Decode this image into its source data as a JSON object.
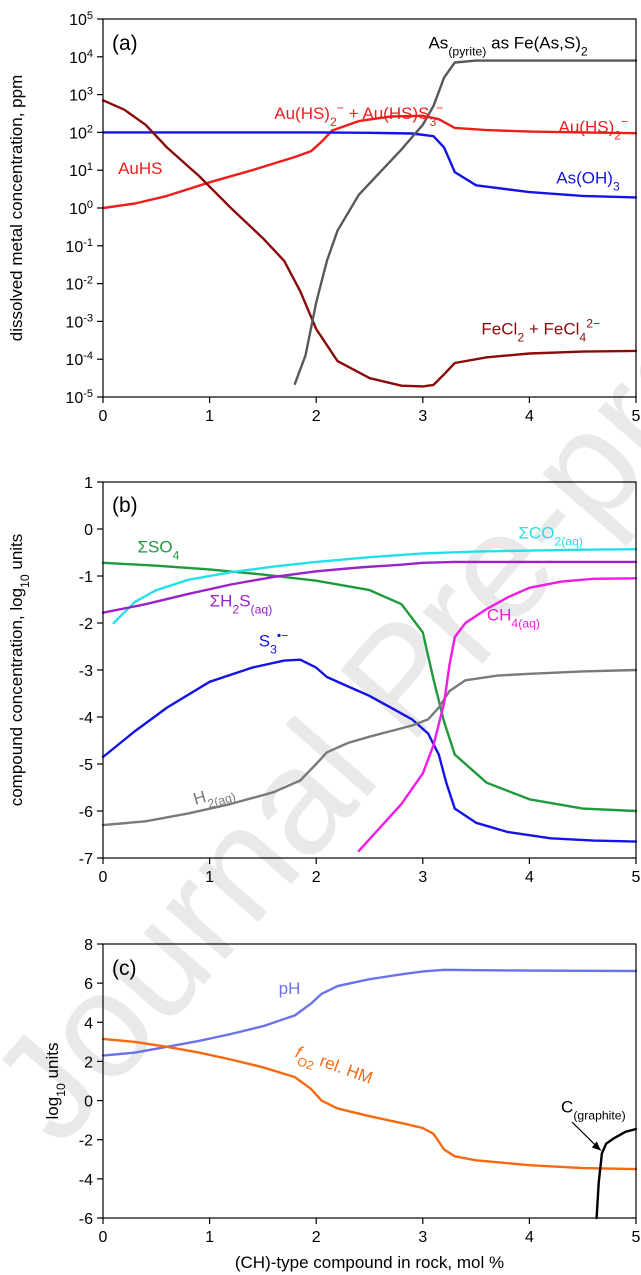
{
  "watermark": "Journal Pre-proof",
  "x_axis_label": "(CH)-type compound in rock, mol %",
  "chart_data": [
    {
      "type": "line",
      "panel_label": "(a)",
      "ylabel": "dissolved metal concentration, ppm",
      "yscale": "log",
      "xlim": [
        0,
        5
      ],
      "ylim": [
        -5,
        5
      ],
      "xticks": [
        "0",
        "1",
        "2",
        "3",
        "4",
        "5"
      ],
      "ytick_base": "10",
      "ytick_exponents": [
        "-5",
        "-4",
        "-3",
        "-2",
        "-1",
        "0",
        "1",
        "2",
        "3",
        "4",
        "5"
      ],
      "series": [
        {
          "id": "au",
          "labels": [
            {
              "text": "AuHS",
              "at": [
                0.35,
                0.9
              ]
            },
            {
              "text": "Au(HS)2− + Au(HS)S3−",
              "at": [
                2.4,
                2.35
              ]
            },
            {
              "text": "Au(HS)2−",
              "at": [
                4.6,
                2.0
              ]
            }
          ],
          "color": "#f01c1c",
          "x": [
            0,
            0.3,
            0.6,
            1.0,
            1.4,
            1.8,
            1.95,
            2.05,
            2.15,
            2.4,
            2.7,
            3.0,
            3.15,
            3.3,
            3.6,
            4.0,
            4.5,
            5.0
          ],
          "y": [
            0.0,
            0.12,
            0.32,
            0.68,
            1.0,
            1.35,
            1.5,
            1.75,
            2.05,
            2.3,
            2.42,
            2.44,
            2.35,
            2.12,
            2.06,
            2.02,
            2.0,
            1.98
          ]
        },
        {
          "id": "as_oh3",
          "labels": [
            {
              "text": "As(OH)3",
              "at": [
                4.55,
                0.65
              ]
            }
          ],
          "color": "#1414e6",
          "x": [
            0,
            0.5,
            1.0,
            1.5,
            2.0,
            2.5,
            2.9,
            3.1,
            3.2,
            3.3,
            3.5,
            4.0,
            4.5,
            5.0
          ],
          "y": [
            2.0,
            2.0,
            2.0,
            2.0,
            2.0,
            1.99,
            1.97,
            1.9,
            1.6,
            0.95,
            0.6,
            0.42,
            0.32,
            0.28
          ]
        },
        {
          "id": "fecl",
          "labels": [
            {
              "text": "FeCl2 + FeCl42−",
              "at": [
                3.55,
                -3.35
              ]
            }
          ],
          "color": "#8b0a0a",
          "x": [
            0,
            0.2,
            0.4,
            0.6,
            0.9,
            1.2,
            1.5,
            1.7,
            1.85,
            2.0,
            2.2,
            2.5,
            2.8,
            3.0,
            3.1,
            3.2,
            3.3,
            3.6,
            4.0,
            4.5,
            5.0
          ],
          "y": [
            2.85,
            2.6,
            2.2,
            1.6,
            0.85,
            0.0,
            -0.8,
            -1.4,
            -2.2,
            -3.2,
            -4.05,
            -4.5,
            -4.7,
            -4.72,
            -4.68,
            -4.4,
            -4.1,
            -3.95,
            -3.85,
            -3.8,
            -3.78
          ]
        },
        {
          "id": "as_pyrite",
          "labels": [
            {
              "text": "As(pyrite) as Fe(As,S)2",
              "at": [
                3.8,
                4.22
              ]
            }
          ],
          "color": "#585858",
          "x": [
            1.8,
            1.9,
            2.0,
            2.1,
            2.2,
            2.4,
            2.6,
            2.8,
            3.0,
            3.1,
            3.2,
            3.3,
            3.5,
            4.0,
            4.5,
            5.0
          ],
          "y": [
            -4.65,
            -3.9,
            -2.5,
            -1.4,
            -0.6,
            0.35,
            0.95,
            1.55,
            2.2,
            2.7,
            3.45,
            3.85,
            3.9,
            3.9,
            3.9,
            3.9
          ]
        }
      ]
    },
    {
      "type": "line",
      "panel_label": "(b)",
      "ylabel": "compound concentration, log10 units",
      "xlim": [
        0,
        5
      ],
      "ylim": [
        -7,
        1
      ],
      "xticks": [
        "0",
        "1",
        "2",
        "3",
        "4",
        "5"
      ],
      "yticks": [
        "-7",
        "-6",
        "-5",
        "-4",
        "-3",
        "-2",
        "-1",
        "0",
        "1"
      ],
      "series": [
        {
          "id": "so4",
          "labels": [
            {
              "text": "ΣSO4",
              "at": [
                0.52,
                -0.5
              ]
            }
          ],
          "color": "#1e9a3c",
          "x": [
            0,
            0.5,
            1.0,
            1.5,
            2.0,
            2.5,
            2.8,
            3.0,
            3.1,
            3.2,
            3.3,
            3.6,
            4.0,
            4.5,
            5.0
          ],
          "y": [
            -0.72,
            -0.78,
            -0.86,
            -0.97,
            -1.1,
            -1.3,
            -1.6,
            -2.2,
            -3.2,
            -4.1,
            -4.8,
            -5.4,
            -5.75,
            -5.95,
            -6.0
          ]
        },
        {
          "id": "co2",
          "labels": [
            {
              "text": "ΣCO2(aq)",
              "at": [
                4.2,
                -0.2
              ]
            }
          ],
          "color": "#22e0ea",
          "x": [
            0.1,
            0.3,
            0.5,
            0.8,
            1.2,
            1.6,
            2.0,
            2.5,
            3.0,
            3.5,
            4.0,
            4.5,
            5.0
          ],
          "y": [
            -2.0,
            -1.55,
            -1.3,
            -1.08,
            -0.92,
            -0.8,
            -0.7,
            -0.6,
            -0.52,
            -0.48,
            -0.46,
            -0.44,
            -0.43
          ]
        },
        {
          "id": "h2s",
          "labels": [
            {
              "text": "ΣH2S(aq)",
              "at": [
                1.0,
                -1.65
              ]
            }
          ],
          "color": "#9a22c8",
          "x": [
            0,
            0.4,
            0.8,
            1.2,
            1.6,
            2.0,
            2.4,
            2.8,
            3.0,
            3.3,
            3.6,
            4.0,
            4.5,
            5.0
          ],
          "y": [
            -1.78,
            -1.6,
            -1.38,
            -1.18,
            -1.02,
            -0.9,
            -0.82,
            -0.76,
            -0.72,
            -0.7,
            -0.7,
            -0.7,
            -0.7,
            -0.7
          ]
        },
        {
          "id": "s3",
          "labels": [
            {
              "text": "S3•−",
              "at": [
                1.6,
                -2.5
              ]
            }
          ],
          "color": "#1414e6",
          "x": [
            0,
            0.3,
            0.6,
            1.0,
            1.4,
            1.7,
            1.85,
            2.0,
            2.1,
            2.3,
            2.5,
            2.7,
            2.9,
            3.05,
            3.15,
            3.22,
            3.3,
            3.5,
            3.8,
            4.2,
            4.6,
            5.0
          ],
          "y": [
            -4.85,
            -4.3,
            -3.8,
            -3.25,
            -2.95,
            -2.8,
            -2.78,
            -2.95,
            -3.15,
            -3.35,
            -3.55,
            -3.8,
            -4.05,
            -4.35,
            -4.8,
            -5.4,
            -5.95,
            -6.25,
            -6.45,
            -6.58,
            -6.63,
            -6.65
          ]
        },
        {
          "id": "h2",
          "labels": [
            {
              "text": "H2(aq)",
              "at": [
                1.05,
                -5.75
              ]
            }
          ],
          "color": "#7a7a7a",
          "x": [
            0,
            0.4,
            0.8,
            1.2,
            1.6,
            1.85,
            2.0,
            2.1,
            2.3,
            2.5,
            2.7,
            2.9,
            3.05,
            3.15,
            3.25,
            3.4,
            3.7,
            4.0,
            4.5,
            5.0
          ],
          "y": [
            -6.3,
            -6.22,
            -6.05,
            -5.85,
            -5.6,
            -5.35,
            -5.0,
            -4.75,
            -4.55,
            -4.42,
            -4.3,
            -4.18,
            -4.05,
            -3.8,
            -3.45,
            -3.22,
            -3.12,
            -3.08,
            -3.03,
            -3.0
          ]
        },
        {
          "id": "ch4",
          "labels": [
            {
              "text": "CH4(aq)",
              "at": [
                3.85,
                -1.95
              ]
            }
          ],
          "color": "#f01ce6",
          "x": [
            2.4,
            2.6,
            2.8,
            3.0,
            3.1,
            3.2,
            3.25,
            3.3,
            3.4,
            3.6,
            3.8,
            4.0,
            4.3,
            4.6,
            5.0
          ],
          "y": [
            -6.85,
            -6.35,
            -5.85,
            -5.2,
            -4.6,
            -3.7,
            -2.9,
            -2.3,
            -2.0,
            -1.7,
            -1.45,
            -1.25,
            -1.12,
            -1.06,
            -1.05
          ]
        }
      ]
    },
    {
      "type": "line",
      "panel_label": "(c)",
      "ylabel": "log10 units",
      "xlabel": "(CH)-type compound in rock, mol %",
      "xlim": [
        0,
        5
      ],
      "ylim": [
        -6,
        8
      ],
      "xticks": [
        "0",
        "1",
        "2",
        "3",
        "4",
        "5"
      ],
      "yticks": [
        "-6",
        "-4",
        "-2",
        "0",
        "2",
        "4",
        "6",
        "8"
      ],
      "series": [
        {
          "id": "ph",
          "labels": [
            {
              "text": "pH",
              "at": [
                1.75,
                5.45
              ]
            }
          ],
          "color": "#6a72ec",
          "x": [
            0,
            0.3,
            0.6,
            0.9,
            1.2,
            1.5,
            1.8,
            1.95,
            2.05,
            2.2,
            2.5,
            2.8,
            3.0,
            3.2,
            3.5,
            4.0,
            4.5,
            5.0
          ],
          "y": [
            2.3,
            2.45,
            2.75,
            3.05,
            3.4,
            3.8,
            4.35,
            4.95,
            5.45,
            5.85,
            6.2,
            6.45,
            6.6,
            6.68,
            6.66,
            6.64,
            6.63,
            6.62
          ]
        },
        {
          "id": "fo2",
          "labels": [
            {
              "text": "fO2 rel. HM",
              "at": [
                2.15,
                1.55
              ]
            }
          ],
          "color": "#f56a10",
          "x": [
            0,
            0.3,
            0.6,
            0.9,
            1.2,
            1.5,
            1.8,
            1.95,
            2.05,
            2.2,
            2.5,
            2.8,
            3.0,
            3.1,
            3.2,
            3.3,
            3.5,
            4.0,
            4.5,
            5.0
          ],
          "y": [
            3.15,
            3.0,
            2.75,
            2.45,
            2.1,
            1.7,
            1.2,
            0.6,
            0.0,
            -0.4,
            -0.8,
            -1.15,
            -1.4,
            -1.7,
            -2.5,
            -2.85,
            -3.05,
            -3.3,
            -3.45,
            -3.5
          ]
        },
        {
          "id": "graphite",
          "labels": [
            {
              "text": "C(graphite)",
              "at": [
                4.6,
                -0.6
              ]
            }
          ],
          "color": "#000000",
          "x": [
            4.63,
            4.65,
            4.68,
            4.72,
            4.8,
            4.9,
            5.0
          ],
          "y": [
            -6.0,
            -4.2,
            -2.7,
            -2.2,
            -1.9,
            -1.6,
            -1.45
          ]
        }
      ]
    }
  ]
}
